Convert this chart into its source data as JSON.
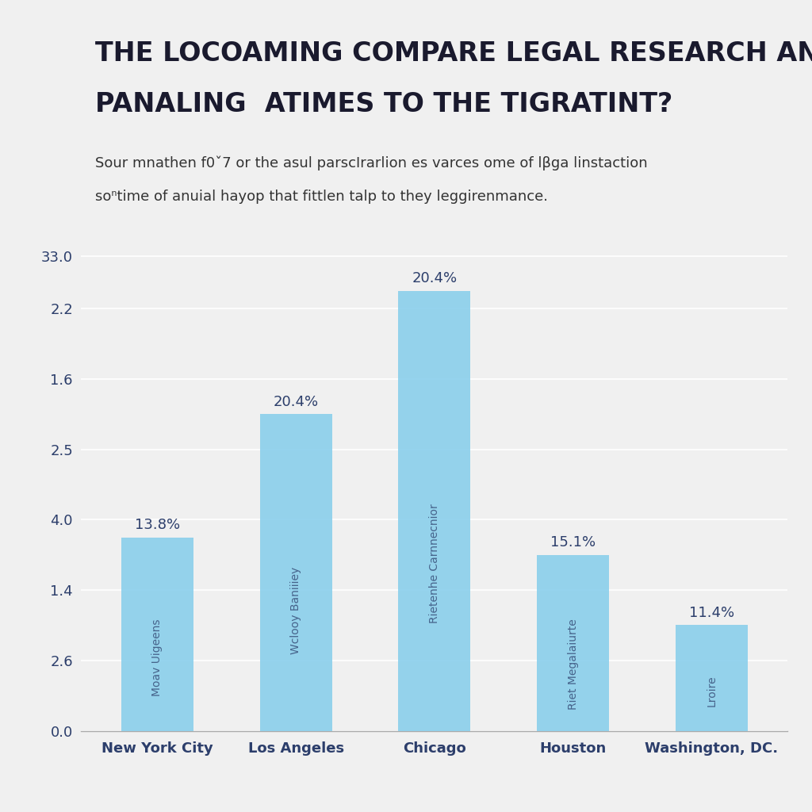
{
  "title_line1": "THE LOCOAMING COMPARE LEGAL RESEARCH AN",
  "title_line2": "PANALING  ATIMES TO THE TIGRATINT?",
  "subtitle_line1": "Sour mnathen f0ˇ7 or the asul parscIrarlion es varces ome of lβga linstaction",
  "subtitle_line2": "soⁿtime of anuial hayop that fittlen talp to they leggirenmance.",
  "categories": [
    "New York City",
    "Los Angeles",
    "Chicago",
    "Houston",
    "Washington, DC."
  ],
  "values": [
    5.5,
    9.0,
    12.5,
    5.0,
    3.0
  ],
  "percentages": [
    "13.8%",
    "20.4%",
    "20.4%",
    "15.1%",
    "11.4%"
  ],
  "bar_inner_labels": [
    "Moav Uigeens",
    "Wclooy Baniiiey",
    "Rietenhe Carnnecnior",
    "Riet Megalaiurte",
    "Lroire"
  ],
  "bar_color": "#87CEEB",
  "ytick_positions": [
    0.0,
    2.0,
    4.0,
    6.0,
    8.0,
    10.0,
    12.0,
    13.5
  ],
  "ytick_labels": [
    "0.0",
    "2.6",
    "1.4",
    "4.0",
    "2.5",
    "1.6",
    "2.2",
    "33.0"
  ],
  "ylim": [
    0,
    14.5
  ],
  "background_color": "#f0f0f0",
  "title_color": "#1a1a2e",
  "subtitle_color": "#333333",
  "bar_label_color": "#2c3e6b",
  "axis_label_color": "#2c3e6b",
  "grid_color": "#ffffff",
  "title_fontsize": 24,
  "subtitle_fontsize": 13,
  "bar_label_fontsize": 13,
  "xtick_fontsize": 13,
  "ytick_fontsize": 13,
  "bar_inner_fontsize": 10,
  "bar_width": 0.52
}
